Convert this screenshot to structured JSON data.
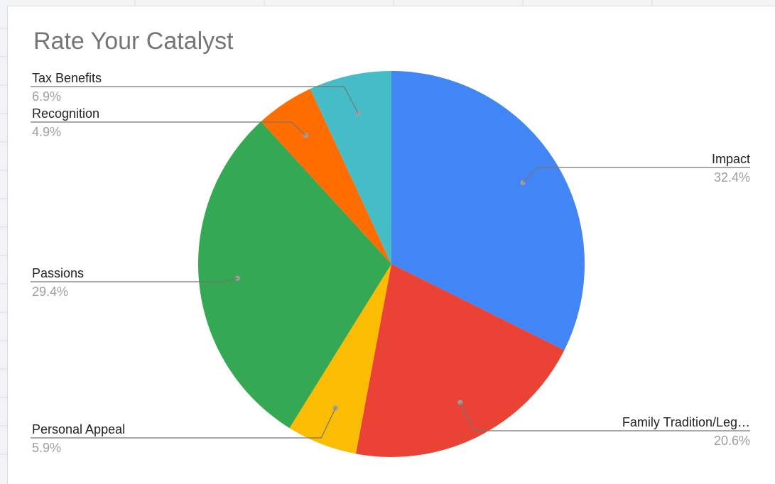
{
  "chart_data": {
    "type": "pie",
    "title": "Rate Your Catalyst",
    "start_angle_deg": 0,
    "direction": "clockwise",
    "slices": [
      {
        "label": "Impact",
        "percent_label": "32.4%",
        "value": 32.4,
        "color": "#4285f4"
      },
      {
        "label": "Family Tradition/Leg…",
        "percent_label": "20.6%",
        "value": 20.6,
        "color": "#ea4335"
      },
      {
        "label": "Personal Appeal",
        "percent_label": "5.9%",
        "value": 5.9,
        "color": "#fbbc04"
      },
      {
        "label": "Passions",
        "percent_label": "29.4%",
        "value": 29.4,
        "color": "#34a853"
      },
      {
        "label": "Recognition",
        "percent_label": "4.9%",
        "value": 4.9,
        "color": "#ff6d01"
      },
      {
        "label": "Tax Benefits",
        "percent_label": "6.9%",
        "value": 6.9,
        "color": "#46bdc6"
      }
    ],
    "legend": "none",
    "labels_position": "outside"
  }
}
